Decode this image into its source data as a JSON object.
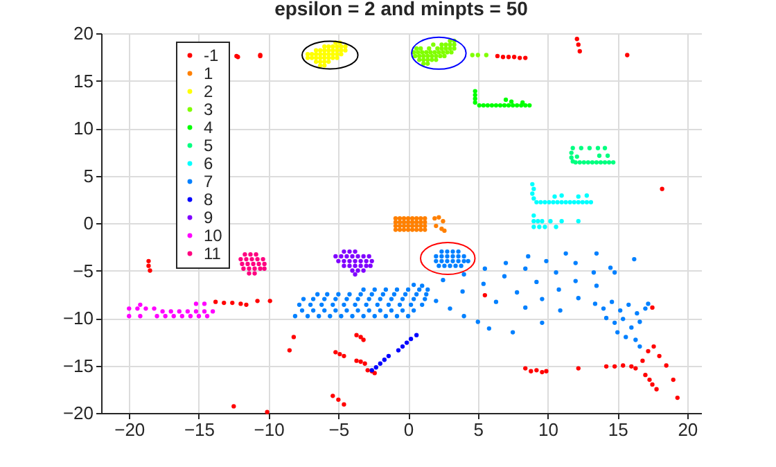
{
  "chart_data": {
    "type": "scatter",
    "title": "epsilon = 2 and minpts = 50",
    "xlim": [
      -22,
      21
    ],
    "ylim": [
      -20,
      20
    ],
    "xticks": [
      -20,
      -15,
      -10,
      -5,
      0,
      5,
      10,
      15,
      20
    ],
    "yticks": [
      -20,
      -15,
      -10,
      -5,
      0,
      5,
      10,
      15,
      20
    ],
    "grid": true,
    "legend": "top left",
    "marker": "circle",
    "series": [
      {
        "name": "-1",
        "color": "#ff0000",
        "x": [
          -12.3,
          -12.2,
          -10.6,
          -10.6,
          6.4,
          6.8,
          7.2,
          7.6,
          8.0,
          8.4,
          12.1,
          12.2,
          12.3,
          15.7,
          18.2,
          -18.6,
          -18.6,
          -18.5,
          -13.8,
          -13.2,
          -12.6,
          -12.0,
          -11.6,
          -10.8,
          -9.9,
          -8.2,
          -8.5,
          -5.2,
          -4.9,
          -4.6,
          -3.7,
          -3.4,
          -3.2,
          -3.7,
          -3.4,
          -3.1,
          -2.9,
          -2.6,
          -2.4,
          -5.4,
          -5.0,
          -4.6,
          -12.5,
          -10.1,
          8.4,
          8.8,
          9.2,
          9.6,
          9.9,
          12.2,
          14.2,
          14.8,
          15.4,
          16.0,
          16.3,
          16.8,
          17.2,
          17.6,
          18.0,
          18.5,
          19.0,
          19.3,
          17.0,
          17.3,
          17.5,
          17.8,
          17.5,
          5.5
        ],
        "values": [
          17.6,
          17.5,
          17.6,
          17.7,
          17.6,
          17.5,
          17.5,
          17.5,
          17.4,
          17.4,
          19.4,
          18.8,
          18.1,
          17.7,
          3.6,
          -4.0,
          -4.5,
          -5.0,
          -8.3,
          -8.4,
          -8.4,
          -8.5,
          -8.6,
          -8.2,
          -8.2,
          -12.0,
          -13.4,
          -13.6,
          -13.8,
          -14.0,
          -11.8,
          -12.0,
          -12.3,
          -14.5,
          -14.6,
          -14.8,
          -15.5,
          -15.6,
          -15.8,
          -18.2,
          -18.6,
          -19.1,
          -19.3,
          -19.9,
          -15.3,
          -15.6,
          -15.5,
          -15.7,
          -15.6,
          -15.3,
          -15.1,
          -15.1,
          -15.0,
          -15.1,
          -15.3,
          -14.5,
          -13.5,
          -13.0,
          -14.0,
          -15.0,
          -16.5,
          -18.4,
          -16.0,
          -16.5,
          -17.0,
          -17.5,
          -8.9,
          -7.6
        ]
      },
      {
        "name": "1",
        "color": "#ff8000",
        "x": [
          -0.9,
          -0.6,
          -0.3,
          0,
          0.3,
          0.6,
          0.9,
          1.2,
          -0.9,
          -0.6,
          -0.3,
          0,
          0.3,
          0.6,
          0.9,
          1.2,
          -0.9,
          -0.6,
          -0.3,
          0,
          0.3,
          0.6,
          0.9,
          1.2,
          -0.9,
          -0.6,
          -0.3,
          0,
          0.3,
          0.6,
          0.9,
          1.2,
          1.9,
          2.2,
          2.5,
          2.0,
          2.4,
          2.6
        ],
        "values": [
          0.5,
          0.5,
          0.5,
          0.5,
          0.5,
          0.5,
          0.5,
          0.5,
          0.1,
          0.1,
          0.1,
          0.1,
          0.1,
          0.1,
          0.1,
          0.1,
          -0.3,
          -0.3,
          -0.3,
          -0.3,
          -0.3,
          -0.3,
          -0.3,
          -0.3,
          -0.7,
          -0.7,
          -0.7,
          -0.7,
          -0.7,
          -0.7,
          -0.7,
          -0.7,
          0.5,
          0.6,
          0.2,
          -0.3,
          -0.6,
          -0.8
        ]
      },
      {
        "name": "2",
        "color": "#ffff00",
        "x": [
          -5.2,
          -4.9,
          -6.0,
          -5.7,
          -5.4,
          -5.1,
          -4.8,
          -4.5,
          -6.6,
          -6.3,
          -6.0,
          -5.7,
          -5.4,
          -5.1,
          -4.8,
          -4.5,
          -7.2,
          -6.9,
          -6.6,
          -6.3,
          -6.0,
          -5.7,
          -5.4,
          -5.1,
          -4.8,
          -7.2,
          -6.9,
          -6.6,
          -6.3,
          -6.0,
          -5.7,
          -5.4,
          -5.1,
          -6.6,
          -6.3,
          -6.0,
          -5.7,
          -6.3,
          -6.0
        ],
        "values": [
          19.0,
          19.0,
          18.6,
          18.6,
          18.6,
          18.6,
          18.6,
          18.6,
          18.2,
          18.2,
          18.2,
          18.2,
          18.2,
          18.2,
          18.2,
          18.2,
          17.8,
          17.8,
          17.8,
          17.8,
          17.8,
          17.8,
          17.8,
          17.8,
          17.8,
          17.4,
          17.4,
          17.4,
          17.4,
          17.4,
          17.4,
          17.4,
          17.4,
          17.0,
          17.0,
          17.0,
          17.0,
          16.6,
          16.6
        ]
      },
      {
        "name": "3",
        "color": "#80ff00",
        "x": [
          3.0,
          3.3,
          1.8,
          2.4,
          2.7,
          3.0,
          3.3,
          0.6,
          0.9,
          1.5,
          2.1,
          2.4,
          2.7,
          3.0,
          3.3,
          0.4,
          0.7,
          1.0,
          1.3,
          1.6,
          1.9,
          2.2,
          2.5,
          2.8,
          3.1,
          0.5,
          0.8,
          1.1,
          1.4,
          1.7,
          2.0,
          2.3,
          2.6,
          0.8,
          1.1,
          1.4,
          1.7,
          2.0,
          1.1,
          1.4,
          4.6,
          5.0,
          5.6
        ],
        "values": [
          19.2,
          19.2,
          18.8,
          18.8,
          18.8,
          18.8,
          18.8,
          18.4,
          18.4,
          18.4,
          18.4,
          18.4,
          18.4,
          18.4,
          18.4,
          18.0,
          18.0,
          18.0,
          18.0,
          18.0,
          18.0,
          18.0,
          18.0,
          18.0,
          18.0,
          17.6,
          17.6,
          17.6,
          17.6,
          17.6,
          17.6,
          17.6,
          17.6,
          17.2,
          17.2,
          17.2,
          17.2,
          17.2,
          16.8,
          16.8,
          17.7,
          17.7,
          17.7
        ]
      },
      {
        "name": "4",
        "color": "#00ff00",
        "x": [
          4.8,
          4.8,
          4.8,
          4.8,
          5.1,
          5.4,
          5.7,
          6.0,
          6.3,
          6.6,
          6.9,
          7.2,
          7.5,
          7.8,
          8.1,
          8.4,
          8.7,
          7.0,
          7.4,
          8.2
        ],
        "values": [
          13.9,
          13.5,
          13.1,
          12.7,
          12.4,
          12.4,
          12.4,
          12.4,
          12.4,
          12.4,
          12.4,
          12.4,
          12.4,
          12.4,
          12.4,
          12.4,
          12.4,
          13.0,
          12.8,
          12.7
        ]
      },
      {
        "name": "5",
        "color": "#00ff80",
        "x": [
          11.8,
          11.7,
          11.7,
          11.8,
          12.0,
          12.3,
          12.6,
          12.9,
          13.2,
          13.5,
          13.8,
          14.1,
          14.4,
          14.7,
          12.4,
          13.0,
          13.6,
          14.1,
          12.1,
          13.7,
          14.3
        ],
        "values": [
          7.9,
          7.4,
          6.9,
          6.5,
          6.4,
          6.4,
          6.4,
          6.4,
          6.4,
          6.4,
          6.4,
          6.4,
          6.4,
          6.4,
          7.9,
          7.9,
          7.9,
          7.9,
          7.0,
          7.1,
          7.1
        ]
      },
      {
        "name": "6",
        "color": "#00ffff",
        "x": [
          8.9,
          9.0,
          8.9,
          9.0,
          9.2,
          9.5,
          9.8,
          10.1,
          10.4,
          10.7,
          11.0,
          11.3,
          11.6,
          11.9,
          12.2,
          12.5,
          12.8,
          13.1,
          10.5,
          11.0,
          12.2,
          12.8,
          9.0,
          9.3,
          9.6,
          10.2,
          11.0,
          12.2,
          9.0,
          9.4,
          9.8,
          10.6,
          9.0
        ],
        "values": [
          4.1,
          3.6,
          3.1,
          2.6,
          2.2,
          2.2,
          2.2,
          2.2,
          2.2,
          2.2,
          2.2,
          2.2,
          2.2,
          2.2,
          2.2,
          2.2,
          2.2,
          2.2,
          2.8,
          2.9,
          2.8,
          2.9,
          0.2,
          0.2,
          0.2,
          0.2,
          0.2,
          0.2,
          -0.4,
          -0.4,
          -0.4,
          -0.4,
          0.8
        ]
      },
      {
        "name": "7",
        "color": "#0080ff",
        "x": [
          -3.2,
          -2.4,
          -1.6,
          -0.8,
          0,
          0.8,
          1.4,
          -6.5,
          -5.8,
          -5.0,
          -4.2,
          -3.4,
          -2.6,
          -1.8,
          -1.0,
          -0.2,
          0.6,
          1.3,
          -7.5,
          -6.8,
          -6.0,
          -5.2,
          -4.4,
          -3.6,
          -2.8,
          -2.0,
          -1.2,
          -0.4,
          0.4,
          1.2,
          -7.8,
          -7.0,
          -6.2,
          -5.4,
          -4.6,
          -3.8,
          -3.0,
          -2.2,
          -1.4,
          -0.6,
          0.2,
          1.0,
          -7.6,
          -6.8,
          -6.0,
          -5.2,
          -4.4,
          -3.6,
          -2.8,
          -2.0,
          -1.2,
          -0.4,
          0.4,
          -8.1,
          -7.2,
          -6.4,
          -5.6,
          -4.8,
          -4.0,
          -3.2,
          -2.4,
          -1.6,
          -0.8,
          0,
          0.4,
          1.0,
          2.5,
          4.0,
          5.5,
          7.0,
          8.6,
          3.9,
          5.4,
          6.9,
          8.4,
          9.9,
          11.3,
          6.3,
          7.8,
          9.2,
          10.6,
          12.0,
          13.5,
          8.4,
          9.6,
          10.8,
          12.0,
          13.3,
          14.5,
          9.6,
          10.9,
          12.2,
          13.5,
          14.8,
          16.2,
          2.0,
          3.0,
          4.0,
          5.0,
          5.8,
          7.5,
          13.4,
          14.0,
          14.6,
          15.2,
          15.8,
          16.4,
          14.2,
          14.8,
          15.4,
          16.0,
          16.6,
          15.0,
          15.6,
          17.0,
          17.2,
          16.3,
          16.6,
          2.4,
          2.8,
          3.2,
          3.6,
          2.0,
          2.4,
          2.8,
          3.2,
          3.6,
          4.0,
          2.0,
          2.4,
          2.8,
          3.2,
          3.6,
          4.0,
          4.3,
          2.2,
          2.6,
          3.0,
          3.4,
          3.8
        ],
        "values": [
          -7.0,
          -7.0,
          -7.0,
          -7.0,
          -7.0,
          -7.0,
          -7.0,
          -7.5,
          -7.5,
          -7.5,
          -7.5,
          -7.5,
          -7.5,
          -7.5,
          -7.5,
          -7.5,
          -7.5,
          -7.5,
          -8.0,
          -8.0,
          -8.0,
          -8.0,
          -8.0,
          -8.0,
          -8.0,
          -8.0,
          -8.0,
          -8.0,
          -8.0,
          -8.0,
          -8.6,
          -8.6,
          -8.6,
          -8.6,
          -8.6,
          -8.6,
          -8.6,
          -8.6,
          -8.6,
          -8.6,
          -8.6,
          -8.6,
          -9.2,
          -9.2,
          -9.2,
          -9.2,
          -9.2,
          -9.2,
          -9.2,
          -9.2,
          -9.2,
          -9.2,
          -9.2,
          -9.8,
          -9.8,
          -9.8,
          -9.8,
          -9.8,
          -9.8,
          -9.8,
          -9.8,
          -9.8,
          -9.8,
          -9.8,
          -6.5,
          -6.6,
          -6.0,
          -5.4,
          -4.8,
          -4.2,
          -3.5,
          -7.2,
          -6.4,
          -5.6,
          -4.8,
          -4.0,
          -3.2,
          -8.3,
          -7.3,
          -6.2,
          -5.2,
          -4.2,
          -3.2,
          -8.9,
          -8.0,
          -7.0,
          -6.1,
          -5.2,
          -4.7,
          -10.5,
          -9.2,
          -7.9,
          -6.6,
          -5.2,
          -3.8,
          -8.2,
          -9.0,
          -9.8,
          -10.4,
          -11.1,
          -11.5,
          -8.5,
          -9.0,
          -8.3,
          -9.2,
          -8.6,
          -9.5,
          -10.0,
          -10.5,
          -10.1,
          -11.0,
          -10.4,
          -11.5,
          -12.0,
          -9.0,
          -8.5,
          -12.3,
          -13.0,
          -3.0,
          -3.0,
          -3.0,
          -3.0,
          -3.5,
          -3.5,
          -3.5,
          -3.5,
          -3.5,
          -3.5,
          -4.0,
          -4.0,
          -4.0,
          -4.0,
          -4.0,
          -4.0,
          -4.0,
          -4.5,
          -4.5,
          -4.5,
          -4.5,
          -4.5
        ]
      },
      {
        "name": "8",
        "color": "#0000ff",
        "x": [
          -2.6,
          -2.3,
          -2.0,
          -1.7,
          -1.4,
          -0.7,
          -0.4,
          -0.1,
          0.2,
          0.6
        ],
        "values": [
          -15.5,
          -15.2,
          -14.8,
          -14.4,
          -14.0,
          -13.4,
          -13.0,
          -12.6,
          -12.2,
          -11.8
        ]
      },
      {
        "name": "9",
        "color": "#8000ff",
        "x": [
          -4.6,
          -4.2,
          -3.8,
          -5.2,
          -4.8,
          -4.4,
          -4.0,
          -3.6,
          -3.2,
          -2.8,
          -5.0,
          -4.6,
          -4.2,
          -3.8,
          -3.4,
          -3.0,
          -2.6,
          -4.6,
          -4.2,
          -3.8,
          -3.4,
          -3.0,
          -2.7,
          -4.0,
          -3.6,
          -3.2,
          -3.8
        ],
        "values": [
          -3.0,
          -3.0,
          -3.0,
          -3.5,
          -3.5,
          -3.5,
          -3.5,
          -3.5,
          -3.5,
          -3.5,
          -4.0,
          -4.0,
          -4.0,
          -4.0,
          -4.0,
          -4.0,
          -4.0,
          -4.5,
          -4.5,
          -4.5,
          -4.5,
          -4.5,
          -4.5,
          -5.0,
          -5.0,
          -5.0,
          -5.4
        ]
      },
      {
        "name": "10",
        "color": "#ff00ff",
        "x": [
          -20,
          -19.4,
          -18.8,
          -18.2,
          -19.2,
          -17.6,
          -17.0,
          -16.4,
          -15.8,
          -15.2,
          -14.6,
          -14.0,
          -20,
          -19.2,
          -18.0,
          -17.4,
          -16.8,
          -16.2,
          -15.6,
          -15.0,
          -14.4,
          -15.2,
          -14.6
        ],
        "values": [
          -9.0,
          -9.0,
          -9.0,
          -9.0,
          -8.6,
          -9.3,
          -9.3,
          -9.3,
          -9.3,
          -9.3,
          -9.3,
          -9.3,
          -9.8,
          -9.8,
          -9.8,
          -9.8,
          -9.8,
          -9.8,
          -9.8,
          -9.8,
          -9.8,
          -8.5,
          -8.5
        ]
      },
      {
        "name": "11",
        "color": "#ff0080",
        "x": [
          -11.7,
          -11.3,
          -10.9,
          -12.0,
          -11.6,
          -11.2,
          -10.8,
          -10.4,
          -11.9,
          -11.5,
          -11.1,
          -10.7,
          -10.3,
          -11.8,
          -11.4,
          -11.0,
          -10.6,
          -10.3,
          -11.4,
          -11.0
        ],
        "values": [
          -3.3,
          -3.3,
          -3.3,
          -3.8,
          -3.8,
          -3.8,
          -3.8,
          -3.8,
          -4.3,
          -4.3,
          -4.3,
          -4.3,
          -4.3,
          -4.8,
          -4.8,
          -4.8,
          -4.8,
          -4.8,
          -5.3,
          -5.3
        ]
      }
    ]
  }
}
